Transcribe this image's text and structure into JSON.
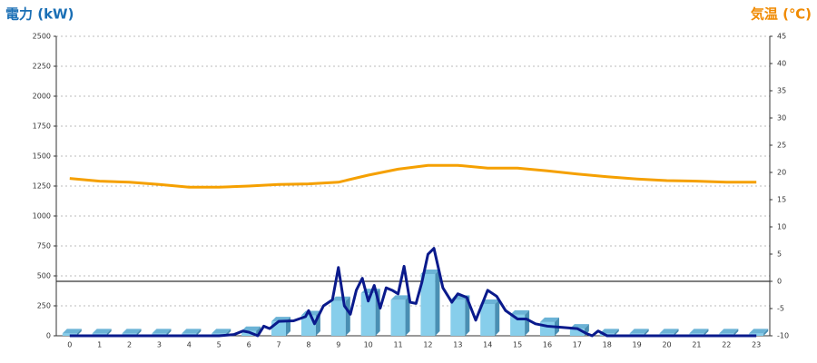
{
  "chart_data": {
    "type": "combo",
    "y_title": "電力 (kW)",
    "y2_title": "気温 (℃)",
    "y_title_color": "#1a6fb5",
    "y2_title_color": "#f08a00",
    "categories": [
      "0",
      "1",
      "2",
      "3",
      "4",
      "5",
      "6",
      "7",
      "8",
      "9",
      "10",
      "11",
      "12",
      "13",
      "14",
      "15",
      "16",
      "17",
      "18",
      "19",
      "20",
      "21",
      "22",
      "23"
    ],
    "xlim": [
      -0.45,
      23.45
    ],
    "ylim": [
      0,
      2500
    ],
    "yticks": [
      0,
      250,
      500,
      750,
      1000,
      1250,
      1500,
      1750,
      2000,
      2250,
      2500
    ],
    "y2lim": [
      -10,
      45
    ],
    "y2ticks": [
      -10,
      -5,
      0,
      5,
      10,
      15,
      20,
      25,
      30,
      35,
      40,
      45
    ],
    "grid": true,
    "y2_zero_line": true,
    "series": [
      {
        "type": "bar",
        "color": "#87ceeb",
        "values": [
          20,
          20,
          20,
          20,
          20,
          20,
          40,
          120,
          170,
          290,
          355,
          300,
          515,
          300,
          265,
          175,
          115,
          60,
          20,
          20,
          20,
          20,
          20,
          20
        ]
      },
      {
        "type": "line",
        "color": "#0a1a8c",
        "x": [
          0,
          1,
          2,
          3,
          4,
          5,
          5.5,
          5.8,
          6,
          6.3,
          6.5,
          6.7,
          7,
          7.5,
          7.9,
          8,
          8.2,
          8.5,
          8.8,
          9,
          9.2,
          9.4,
          9.6,
          9.8,
          10,
          10.2,
          10.4,
          10.6,
          10.8,
          11,
          11.2,
          11.4,
          11.6,
          11.8,
          12,
          12.2,
          12.5,
          12.8,
          13,
          13.3,
          13.6,
          14,
          14.3,
          14.6,
          15,
          15.3,
          15.6,
          16,
          16.5,
          17,
          17.3,
          17.5,
          17.7,
          18,
          19,
          20,
          21,
          22,
          23
        ],
        "values": [
          0,
          0,
          0,
          0,
          0,
          0,
          10,
          40,
          30,
          0,
          80,
          60,
          120,
          125,
          160,
          210,
          100,
          250,
          300,
          570,
          250,
          180,
          380,
          480,
          290,
          420,
          230,
          400,
          380,
          350,
          580,
          280,
          270,
          450,
          680,
          730,
          400,
          280,
          350,
          320,
          130,
          380,
          330,
          210,
          140,
          140,
          100,
          80,
          70,
          60,
          20,
          0,
          40,
          0,
          0,
          0,
          0,
          0,
          0
        ]
      },
      {
        "type": "line",
        "axis": "y2",
        "color": "#f5a000",
        "values": [
          18.9,
          18.4,
          18.2,
          17.8,
          17.3,
          17.3,
          17.5,
          17.8,
          17.9,
          18.2,
          19.5,
          20.6,
          21.3,
          21.3,
          20.8,
          20.8,
          20.3,
          19.7,
          19.2,
          18.8,
          18.5,
          18.4,
          18.2,
          18.2
        ]
      }
    ]
  }
}
